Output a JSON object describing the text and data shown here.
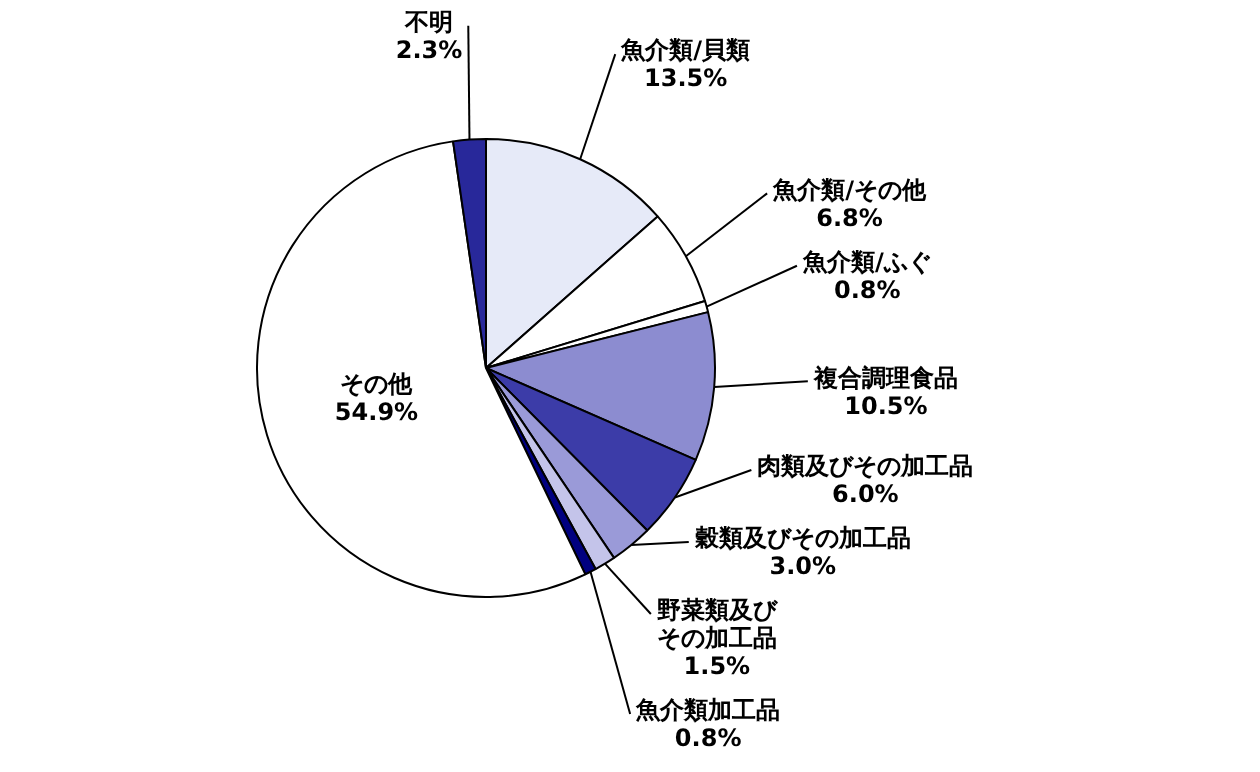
{
  "chart_data": {
    "type": "pie",
    "categories": [
      "魚介類/貝類",
      "魚介類/その他",
      "魚介類/ふぐ",
      "複合調理食品",
      "肉類及びその加工品",
      "穀類及びその加工品",
      "野菜類及びその加工品",
      "魚介類加工品",
      "その他",
      "不明"
    ],
    "values": [
      13.5,
      6.8,
      0.8,
      10.5,
      6.0,
      3.0,
      1.5,
      0.8,
      54.9,
      2.3
    ],
    "value_labels": [
      "13.5%",
      "6.8%",
      "0.8%",
      "10.5%",
      "6.0%",
      "3.0%",
      "1.5%",
      "0.8%",
      "54.9%",
      "2.3%"
    ],
    "colors": [
      "#e6eaf8",
      "#ffffff",
      "#ffffff",
      "#8c8cd0",
      "#3c3ca8",
      "#9a9ad8",
      "#c4c4ea",
      "#000080",
      "#ffffff",
      "#28289a"
    ],
    "legend": false
  }
}
